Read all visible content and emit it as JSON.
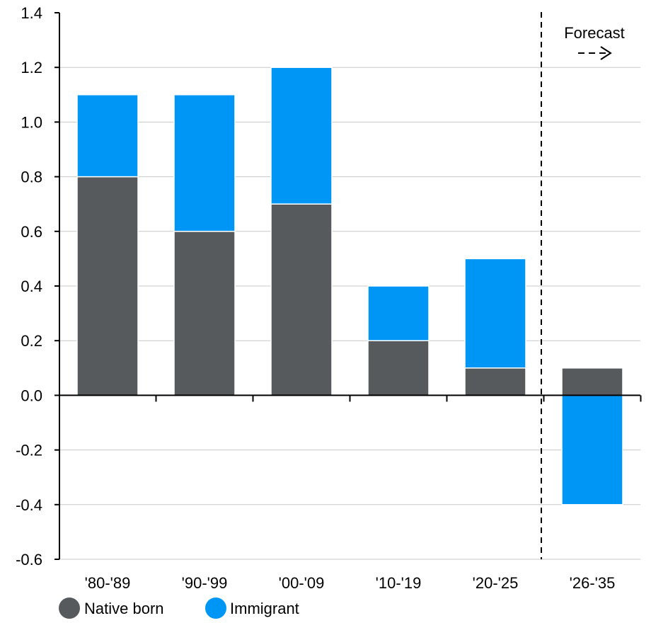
{
  "chart_data": {
    "type": "bar",
    "stacked": true,
    "categories": [
      "'80-'89",
      "'90-'99",
      "'00-'09",
      "'10-'19",
      "'20-'25",
      "'26-'35"
    ],
    "series": [
      {
        "name": "Native born",
        "color": "#575a5d",
        "values": [
          0.8,
          0.6,
          0.7,
          0.2,
          0.1,
          0.1
        ]
      },
      {
        "name": "Immigrant",
        "color": "#0096f5",
        "values": [
          0.3,
          0.5,
          0.5,
          0.2,
          0.4,
          -0.4
        ]
      }
    ],
    "title": "",
    "xlabel": "",
    "ylabel": "",
    "ylim": [
      -0.6,
      1.4
    ],
    "yticks": [
      "1.4",
      "1.2",
      "1.0",
      "0.8",
      "0.6",
      "0.4",
      "0.2",
      "0.0",
      "-0.2",
      "-0.4",
      "-0.6"
    ],
    "yticks_values": [
      1.4,
      1.2,
      1.0,
      0.8,
      0.6,
      0.4,
      0.2,
      0.0,
      -0.2,
      -0.4,
      -0.6
    ],
    "grid": true,
    "legend_position": "bottom-left",
    "forecast": {
      "label": "Forecast",
      "arrow": "- ->",
      "starts_before_category": "'26-'35"
    }
  }
}
